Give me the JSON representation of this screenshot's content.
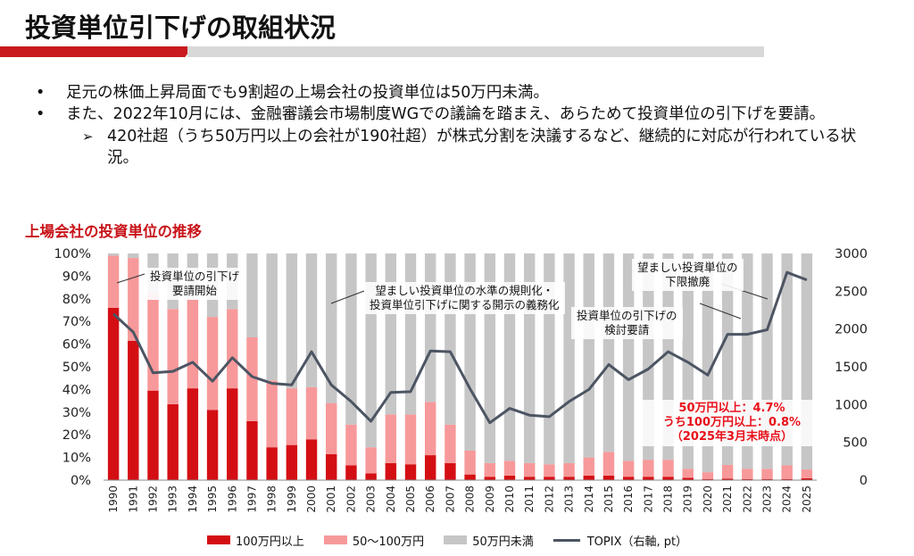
{
  "title": "投資単位引下げの取組状況",
  "bullets": [
    "足元の株価上昇局面でも9割超の上場会社の投資単位は50万円未満。",
    "また、2022年10月には、金融審議会市場制度WGでの議論を踏まえ、あらためて投資単位の引下げを要請。"
  ],
  "sub_bullet": "420社超（うち50万円以上の会社が190社超）が株式分割を決議するなど、継続的に対応が行われている状況。",
  "chart_title": "上場会社の投資単位の推移",
  "colors": {
    "over_100": "#d40f14",
    "between_50_100": "#f7999a",
    "under_50": "#c6c6c6",
    "topix": "#4d5563",
    "accent_red": "#c81a1f"
  },
  "annotations": {
    "start": "投資単位の引下げ\n要請開始",
    "rule": "望ましい投資単位の水準の規則化・\n投資単位引下げに関する開示の義務化",
    "review": "投資単位の引下げの\n検討要請",
    "abolish": "望ましい投資単位の\n下限撤廃"
  },
  "callout": [
    "50万円以上：4.7%",
    "うち100万円以上：0.8%",
    "（2025年3月末時点）"
  ],
  "chart_data": {
    "type": "bar",
    "stacked": true,
    "title": "上場会社の投資単位の推移",
    "categories": [
      "1990",
      "1991",
      "1992",
      "1993",
      "1994",
      "1995",
      "1996",
      "1997",
      "1998",
      "1999",
      "2000",
      "2001",
      "2002",
      "2003",
      "2004",
      "2005",
      "2006",
      "2007",
      "2008",
      "2009",
      "2010",
      "2011",
      "2012",
      "2013",
      "2014",
      "2015",
      "2016",
      "2017",
      "2018",
      "2019",
      "2020",
      "2021",
      "2022",
      "2023",
      "2024",
      "2025"
    ],
    "y_ticks": [
      "0%",
      "10%",
      "20%",
      "30%",
      "40%",
      "50%",
      "60%",
      "70%",
      "80%",
      "90%",
      "100%"
    ],
    "y2_ticks": [
      "0",
      "500",
      "1000",
      "1500",
      "2000",
      "2500",
      "3000"
    ],
    "ylim": [
      0,
      100
    ],
    "y2lim": [
      0,
      3000
    ],
    "series": [
      {
        "name": "100万円以上",
        "values": [
          76,
          61.5,
          39.5,
          33.5,
          40.5,
          31,
          40.5,
          26,
          14.5,
          15.5,
          18,
          11.5,
          6.5,
          3,
          7.5,
          7,
          11,
          7.5,
          2.5,
          1.5,
          2,
          1.5,
          1.5,
          1.5,
          2,
          2,
          1.5,
          1.5,
          1.5,
          1,
          0.5,
          0.7,
          0.5,
          0.5,
          0.5,
          0.8
        ]
      },
      {
        "name": "50～100万円",
        "values": [
          23,
          36.5,
          43,
          42,
          39.5,
          41,
          35,
          37,
          29.5,
          25,
          23,
          22.5,
          18,
          11.5,
          21.5,
          22,
          23.5,
          17,
          10.5,
          6,
          6.5,
          6,
          5.5,
          6,
          8,
          10.5,
          7,
          7.5,
          7.5,
          4,
          3,
          6,
          4.5,
          4.5,
          6,
          3.9
        ]
      },
      {
        "name": "50万円未満",
        "values": [
          1,
          2,
          17.5,
          24.5,
          20,
          28,
          24.5,
          37,
          56,
          59.5,
          59,
          66,
          75.5,
          85.5,
          71,
          71,
          65.5,
          75.5,
          87,
          92.5,
          91.5,
          92.5,
          93,
          92.5,
          90,
          87.5,
          91.5,
          91,
          91,
          95,
          96.5,
          93.3,
          95,
          95,
          93.5,
          95.3
        ]
      }
    ],
    "topix": {
      "name": "TOPIX（右軸, pt）",
      "values": [
        2200,
        1960,
        1420,
        1440,
        1560,
        1310,
        1620,
        1370,
        1280,
        1260,
        1700,
        1260,
        1040,
        780,
        1160,
        1170,
        1710,
        1700,
        1210,
        760,
        950,
        860,
        840,
        1040,
        1200,
        1530,
        1330,
        1470,
        1700,
        1560,
        1390,
        1930,
        1930,
        1990,
        2750,
        2650
      ]
    }
  }
}
